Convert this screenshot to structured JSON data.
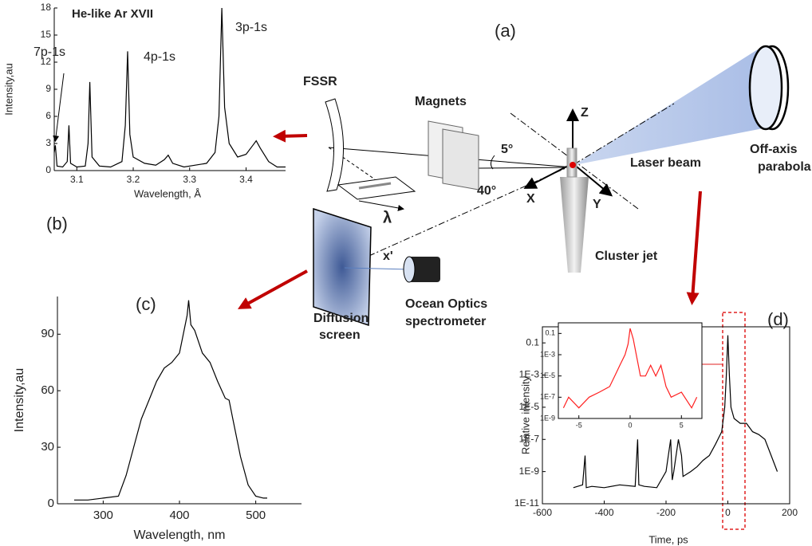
{
  "diagram": {
    "panel_label": "(a)",
    "fssr": "FSSR",
    "magnets": "Magnets",
    "z": "Z",
    "x": "X",
    "y": "Y",
    "angle_5": "5°",
    "angle_40": "40°",
    "lambda": "λ",
    "x_prime": "x'",
    "laser_beam": "Laser beam",
    "off_axis_parabola": [
      "Off-axis",
      "parabola"
    ],
    "cluster_jet": "Cluster jet",
    "diffusion_screen": [
      "Diffusion",
      "screen"
    ],
    "ocean_optics": [
      "Ocean Optics",
      "spectrometer"
    ]
  },
  "chart_data": [
    {
      "type": "line",
      "title": "He-like Ar XVII",
      "panel_label": "(b)",
      "xlabel": "Wavelength, Å",
      "ylabel": "Intensity,au",
      "annotations": [
        "7p-1s",
        "4p-1s",
        "3p-1s"
      ],
      "color": "#000000",
      "x": [
        3.06,
        3.062,
        3.065,
        3.075,
        3.083,
        3.086,
        3.089,
        3.1,
        3.115,
        3.12,
        3.123,
        3.127,
        3.14,
        3.16,
        3.18,
        3.186,
        3.19,
        3.194,
        3.2,
        3.22,
        3.24,
        3.255,
        3.262,
        3.27,
        3.29,
        3.31,
        3.33,
        3.345,
        3.352,
        3.357,
        3.362,
        3.37,
        3.385,
        3.4,
        3.412,
        3.418,
        3.425,
        3.44,
        3.455,
        3.47
      ],
      "values": [
        2,
        2.8,
        0.5,
        0.4,
        1,
        5,
        0.8,
        0.4,
        0.5,
        3,
        9.8,
        1.5,
        0.5,
        0.4,
        1,
        5,
        13.2,
        4,
        1.5,
        0.8,
        0.6,
        1.2,
        1.7,
        0.8,
        0.4,
        0.6,
        0.8,
        2,
        6,
        18,
        7,
        3,
        1.5,
        1.8,
        2.8,
        3.3,
        2.5,
        1,
        0.4,
        0.4
      ],
      "xlim": [
        3.06,
        3.47
      ],
      "xticks": [
        3.1,
        3.2,
        3.3,
        3.4
      ],
      "ylim": [
        0,
        18
      ],
      "yticks": [
        0,
        3,
        6,
        9,
        12,
        15,
        18
      ]
    },
    {
      "type": "line",
      "panel_label": "(c)",
      "xlabel": "Wavelength, nm",
      "ylabel": "Intensity,au",
      "color": "#000000",
      "x": [
        262,
        280,
        300,
        320,
        330,
        340,
        350,
        360,
        370,
        380,
        390,
        400,
        405,
        410,
        412,
        415,
        420,
        430,
        440,
        450,
        460,
        465,
        470,
        480,
        490,
        500,
        510,
        515
      ],
      "values": [
        2,
        2,
        3,
        4,
        15,
        30,
        45,
        55,
        65,
        72,
        75,
        80,
        90,
        100,
        108,
        95,
        92,
        80,
        75,
        65,
        56,
        55,
        45,
        25,
        10,
        4,
        3,
        3
      ],
      "xlim": [
        240,
        560
      ],
      "xticks": [
        300,
        400,
        500
      ],
      "ylim": [
        0,
        110
      ],
      "yticks": [
        0,
        30,
        60,
        90
      ]
    },
    {
      "type": "line",
      "panel_label": "(d)",
      "xlabel": "Time, ps",
      "ylabel": "Relative intensity",
      "color": "#000000",
      "ylog": true,
      "x": [
        -500,
        -470,
        -462,
        -458,
        -440,
        -400,
        -350,
        -300,
        -292,
        -288,
        -270,
        -230,
        -200,
        -185,
        -180,
        -175,
        -160,
        -150,
        -145,
        -120,
        -100,
        -80,
        -60,
        -40,
        -20,
        -10,
        -5,
        0,
        5,
        10,
        20,
        40,
        60,
        80,
        100,
        120,
        140,
        160
      ],
      "values": [
        1e-10,
        1.5e-10,
        1e-08,
        1e-10,
        1.2e-10,
        1e-10,
        1.5e-10,
        1.2e-10,
        1e-07,
        1.5e-10,
        1.2e-10,
        1e-10,
        1e-09,
        1e-07,
        3e-10,
        1e-09,
        1e-07,
        1e-08,
        5e-10,
        1e-09,
        2e-09,
        5e-09,
        1e-08,
        5e-08,
        3e-07,
        1e-05,
        0.001,
        0.3,
        0.001,
        1e-05,
        2e-06,
        1e-06,
        1e-06,
        3e-07,
        2e-07,
        1e-07,
        1e-08,
        1e-09
      ],
      "xlim": [
        -600,
        200
      ],
      "xticks": [
        -600,
        -400,
        -200,
        0,
        200
      ],
      "ylim": [
        1e-11,
        1
      ],
      "yticks": [
        {
          "value": 1e-11,
          "label": "1E-11"
        },
        {
          "value": 1e-09,
          "label": "1E-9"
        },
        {
          "value": 1e-07,
          "label": "1E-7"
        },
        {
          "value": 1e-05,
          "label": "1E-5"
        },
        {
          "value": 0.001,
          "label": "1E-3"
        },
        0.1
      ]
    },
    {
      "type": "line",
      "color": "#ff2020",
      "ylog": true,
      "x": [
        -6.5,
        -6,
        -5,
        -4,
        -3,
        -2,
        -1.5,
        -1,
        -0.5,
        -0.2,
        0,
        0.3,
        0.6,
        1,
        1.5,
        2,
        2.5,
        3,
        3.5,
        4,
        5,
        6,
        6.5
      ],
      "values": [
        1e-08,
        1e-07,
        1e-08,
        1e-07,
        3e-07,
        1e-06,
        1e-05,
        0.0001,
        0.001,
        0.01,
        0.3,
        0.03,
        0.001,
        1e-05,
        1e-05,
        0.0001,
        1e-05,
        0.0001,
        1e-06,
        1e-07,
        3e-07,
        1e-08,
        1e-07
      ],
      "xlim": [
        -7,
        7
      ],
      "xticks": [
        -5,
        0,
        5
      ],
      "ylim": [
        1e-09,
        1
      ],
      "yticks": [
        {
          "value": 1e-09,
          "label": "1E-9"
        },
        {
          "value": 1e-07,
          "label": "1E-7"
        },
        {
          "value": 1e-05,
          "label": "1E-5"
        },
        {
          "value": 0.001,
          "label": "1E-3"
        },
        0.1
      ]
    }
  ]
}
